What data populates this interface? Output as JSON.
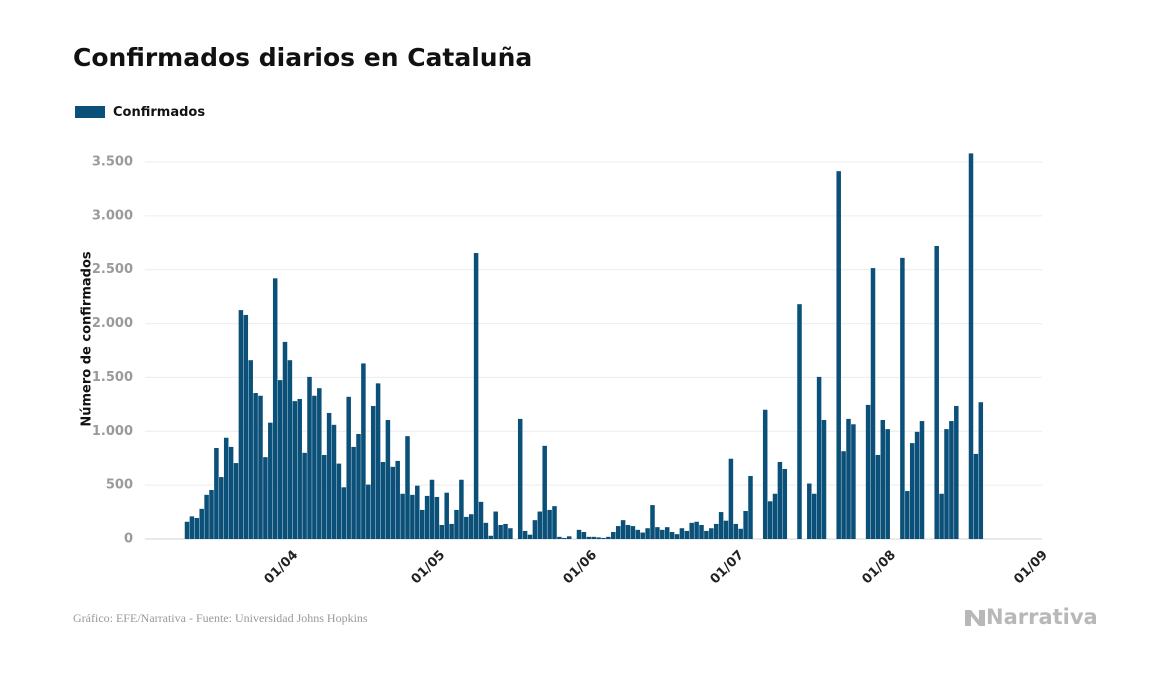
{
  "chart_data": {
    "type": "bar",
    "title": "Confirmados diarios en Cataluña",
    "y_label": "Número de confirmados",
    "categories": [
      "11/03",
      "12/03",
      "13/03",
      "14/03",
      "15/03",
      "16/03",
      "17/03",
      "18/03",
      "19/03",
      "20/03",
      "21/03",
      "22/03",
      "23/03",
      "24/03",
      "25/03",
      "26/03",
      "27/03",
      "28/03",
      "29/03",
      "30/03",
      "31/03",
      "01/04",
      "02/04",
      "03/04",
      "04/04",
      "05/04",
      "06/04",
      "07/04",
      "08/04",
      "09/04",
      "10/04",
      "11/04",
      "12/04",
      "13/04",
      "14/04",
      "15/04",
      "16/04",
      "17/04",
      "18/04",
      "19/04",
      "20/04",
      "21/04",
      "22/04",
      "23/04",
      "24/04",
      "25/04",
      "26/04",
      "27/04",
      "28/04",
      "29/04",
      "30/04",
      "01/05",
      "02/05",
      "03/05",
      "04/05",
      "05/05",
      "06/05",
      "07/05",
      "08/05",
      "09/05",
      "10/05",
      "11/05",
      "12/05",
      "13/05",
      "14/05",
      "15/05",
      "16/05",
      "17/05",
      "18/05",
      "19/05",
      "20/05",
      "21/05",
      "22/05",
      "23/05",
      "24/05",
      "25/05",
      "26/05",
      "27/05",
      "28/05",
      "29/05",
      "30/05",
      "31/05",
      "01/06",
      "02/06",
      "03/06",
      "04/06",
      "05/06",
      "06/06",
      "07/06",
      "08/06",
      "09/06",
      "10/06",
      "11/06",
      "12/06",
      "13/06",
      "14/06",
      "15/06",
      "16/06",
      "17/06",
      "18/06",
      "19/06",
      "20/06",
      "21/06",
      "22/06",
      "23/06",
      "24/06",
      "25/06",
      "26/06",
      "27/06",
      "28/06",
      "29/06",
      "30/06",
      "01/07",
      "02/07",
      "03/07",
      "04/07",
      "05/07",
      "06/07",
      "07/07",
      "08/07",
      "09/07",
      "10/07",
      "11/07",
      "12/07",
      "13/07",
      "14/07",
      "15/07",
      "16/07",
      "17/07",
      "18/07",
      "19/07",
      "20/07",
      "21/07",
      "22/07",
      "23/07",
      "24/07",
      "25/07",
      "26/07",
      "27/07",
      "28/07",
      "29/07",
      "30/07",
      "31/07",
      "01/08",
      "02/08",
      "03/08",
      "04/08",
      "05/08",
      "06/08",
      "07/08",
      "08/08",
      "09/08",
      "10/08",
      "11/08",
      "12/08",
      "13/08",
      "14/08",
      "15/08",
      "16/08",
      "17/08",
      "18/08",
      "19/08",
      "20/08",
      "21/08",
      "22/08",
      "23/08",
      "24/08",
      "25/08",
      "26/08",
      "27/08",
      "28/08",
      "29/08",
      "30/08",
      "31/08",
      "01/09"
    ],
    "series": [
      {
        "name": "Confirmados",
        "color": "#0b5078",
        "values": [
          160,
          210,
          195,
          280,
          410,
          455,
          845,
          575,
          940,
          855,
          705,
          2125,
          2080,
          1660,
          1355,
          1330,
          760,
          1080,
          2420,
          1475,
          1830,
          1660,
          1280,
          1300,
          800,
          1505,
          1330,
          1400,
          780,
          1170,
          1060,
          700,
          480,
          1320,
          855,
          975,
          1630,
          505,
          1235,
          1445,
          715,
          1105,
          670,
          725,
          420,
          955,
          410,
          495,
          270,
          400,
          550,
          390,
          130,
          430,
          140,
          270,
          550,
          205,
          230,
          2655,
          345,
          150,
          30,
          255,
          130,
          140,
          100,
          null,
          1115,
          75,
          40,
          175,
          255,
          865,
          270,
          305,
          20,
          10,
          25,
          null,
          85,
          65,
          20,
          20,
          15,
          10,
          20,
          65,
          120,
          175,
          130,
          120,
          85,
          60,
          100,
          315,
          110,
          85,
          110,
          65,
          45,
          100,
          75,
          150,
          160,
          130,
          75,
          100,
          140,
          250,
          170,
          745,
          140,
          95,
          260,
          585,
          null,
          null,
          1200,
          350,
          420,
          715,
          650,
          null,
          null,
          2180,
          null,
          515,
          420,
          1505,
          1105,
          null,
          null,
          3415,
          815,
          1115,
          1065,
          null,
          null,
          1245,
          2515,
          780,
          1105,
          1020,
          null,
          null,
          2610,
          445,
          890,
          995,
          1095,
          null,
          null,
          2720,
          420,
          1020,
          1095,
          1235,
          null,
          null,
          3580,
          790,
          1270,
          null,
          null,
          null,
          null,
          null,
          null,
          null,
          null,
          null,
          null,
          null,
          null
        ]
      }
    ],
    "xticks": [
      "01/04",
      "01/05",
      "01/06",
      "01/07",
      "01/08",
      "01/09"
    ],
    "ylim": [
      0,
      3500
    ],
    "yticks": [
      0,
      500,
      {
        "value": 1000,
        "label": "1.000"
      },
      {
        "value": 1500,
        "label": "1.500"
      },
      {
        "value": 2000,
        "label": "2.000"
      },
      {
        "value": 2500,
        "label": "2.500"
      },
      {
        "value": 3000,
        "label": "3.000"
      },
      {
        "value": 3500,
        "label": "3.500"
      }
    ],
    "grid": true
  },
  "source": "Gráfico: EFE/Narrativa - Fuente: Universidad Johns Hopkins",
  "brand": "Narrativa"
}
